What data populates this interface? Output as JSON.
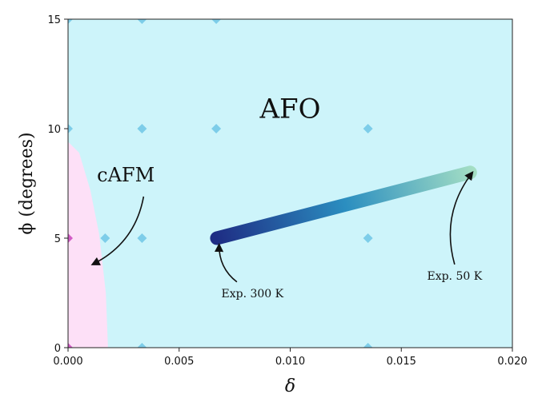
{
  "chart_data": {
    "type": "scatter",
    "title": "",
    "xlabel": "δ",
    "ylabel": "ϕ (degrees)",
    "xlim": [
      0.0,
      0.02
    ],
    "ylim": [
      0,
      15
    ],
    "xticks": [
      0.0,
      0.005,
      0.01,
      0.015,
      0.02
    ],
    "xtick_labels": [
      "0.000",
      "0.005",
      "0.010",
      "0.015",
      "0.020"
    ],
    "yticks": [
      0,
      5,
      10,
      15
    ],
    "ytick_labels": [
      "0",
      "5",
      "10",
      "15"
    ],
    "grid": false,
    "legend": "none",
    "regions": [
      {
        "name": "AFO",
        "color": "#cdf4fa"
      },
      {
        "name": "cAFM",
        "color": "#fde0f7",
        "boundary": [
          [
            0.0,
            9.4
          ],
          [
            0.0005,
            8.9
          ],
          [
            0.001,
            7.2
          ],
          [
            0.0014,
            5.2
          ],
          [
            0.0017,
            2.5
          ],
          [
            0.0018,
            0.0
          ]
        ]
      }
    ],
    "points": [
      {
        "x": 0.0,
        "y": 0,
        "phase": "cAFM"
      },
      {
        "x": 0.0,
        "y": 5,
        "phase": "cAFM"
      },
      {
        "x": 0.0,
        "y": 10,
        "phase": "AFO"
      },
      {
        "x": 0.0,
        "y": 15,
        "phase": "AFO"
      },
      {
        "x": 0.00167,
        "y": 5,
        "phase": "AFO"
      },
      {
        "x": 0.00333,
        "y": 0,
        "phase": "AFO"
      },
      {
        "x": 0.00333,
        "y": 5,
        "phase": "AFO"
      },
      {
        "x": 0.00333,
        "y": 10,
        "phase": "AFO"
      },
      {
        "x": 0.00333,
        "y": 15,
        "phase": "AFO"
      },
      {
        "x": 0.00667,
        "y": 10,
        "phase": "AFO"
      },
      {
        "x": 0.00667,
        "y": 15,
        "phase": "AFO"
      },
      {
        "x": 0.0135,
        "y": 0,
        "phase": "AFO"
      },
      {
        "x": 0.0135,
        "y": 5,
        "phase": "AFO"
      },
      {
        "x": 0.0135,
        "y": 10,
        "phase": "AFO"
      }
    ],
    "point_colors": {
      "AFO": "#7dcde9",
      "cAFM": "#d25bc6"
    },
    "path": {
      "start": {
        "x": 0.0067,
        "y": 5.0
      },
      "end": {
        "x": 0.0181,
        "y": 8.0
      },
      "gradient": [
        "#1e2d84",
        "#2b8ec0",
        "#a5dfc4"
      ]
    },
    "annotations": [
      {
        "text": "AFO",
        "x": 0.01,
        "y": 10.5,
        "kind": "region"
      },
      {
        "text": "cAFM",
        "x": 0.0026,
        "y": 7.6,
        "kind": "region"
      },
      {
        "text": "Exp. 300 K",
        "x": 0.0083,
        "y": 2.3,
        "kind": "arrow",
        "arrow_from": [
          0.0076,
          3.0
        ],
        "arrow_to": [
          0.0068,
          4.7
        ]
      },
      {
        "text": "Exp. 50 K",
        "x": 0.0174,
        "y": 3.1,
        "kind": "arrow",
        "arrow_from": [
          0.0174,
          3.8
        ],
        "arrow_to": [
          0.0182,
          8.0
        ]
      },
      {
        "arrow_from": [
          0.0034,
          6.9
        ],
        "arrow_to": [
          0.0011,
          3.8
        ],
        "kind": "arrow-only",
        "target": "cAFM"
      }
    ]
  }
}
